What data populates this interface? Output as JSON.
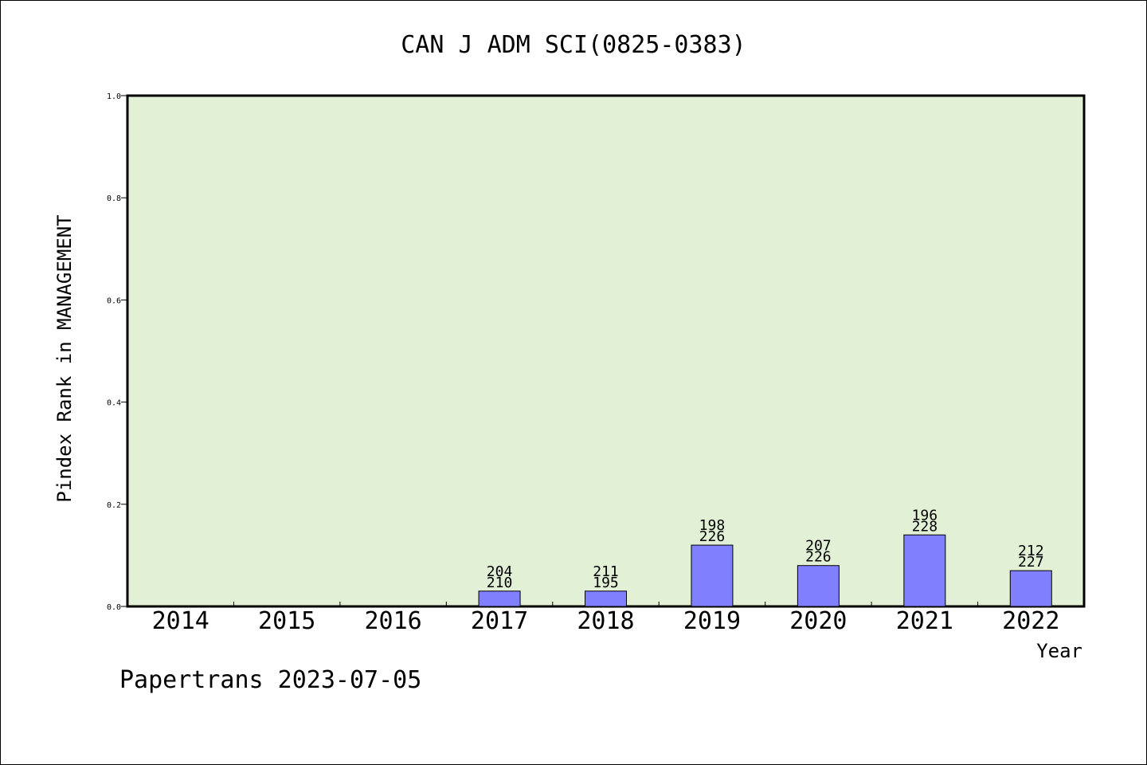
{
  "chart_data": {
    "type": "bar",
    "title": "CAN J ADM SCI(0825-0383)",
    "xlabel": "Year",
    "ylabel": "Pindex Rank in MANAGEMENT",
    "ylim": [
      0,
      1.0
    ],
    "yticks": [
      "0.0",
      "0.2",
      "0.4",
      "0.6",
      "0.8",
      "1.0"
    ],
    "categories": [
      "2014",
      "2015",
      "2016",
      "2017",
      "2018",
      "2019",
      "2020",
      "2021",
      "2022"
    ],
    "values": [
      null,
      null,
      null,
      0.03,
      0.03,
      0.12,
      0.08,
      0.14,
      0.07
    ],
    "labels_top": [
      "",
      "",
      "",
      "204",
      "211",
      "198",
      "207",
      "196",
      "212"
    ],
    "labels_bottom": [
      "",
      "",
      "",
      "210",
      "195",
      "226",
      "226",
      "228",
      "227"
    ],
    "grid": false,
    "colors": {
      "plot_background": "#e2f0d6",
      "bar_fill": "#8080ff",
      "bar_stroke": "#000000"
    }
  },
  "footer": "Papertrans 2023-07-05"
}
